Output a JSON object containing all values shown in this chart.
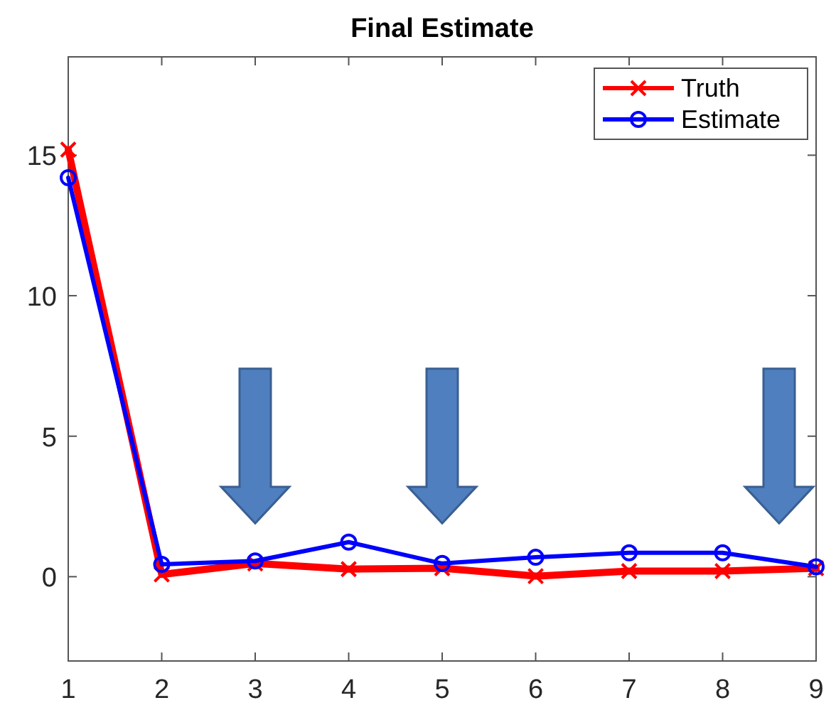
{
  "chart_data": {
    "type": "line",
    "title": "Final Estimate",
    "x": [
      1,
      2,
      3,
      4,
      5,
      6,
      7,
      8,
      9
    ],
    "series": [
      {
        "name": "Truth",
        "color": "#ff0000",
        "marker": "cross",
        "values": [
          15.2,
          0.08,
          0.47,
          0.27,
          0.3,
          0.02,
          0.2,
          0.2,
          0.3
        ]
      },
      {
        "name": "Estimate",
        "color": "#0000ff",
        "marker": "circle",
        "values": [
          14.2,
          0.44,
          0.56,
          1.23,
          0.47,
          0.69,
          0.85,
          0.85,
          0.35
        ]
      }
    ],
    "xlim": [
      1,
      9
    ],
    "xticks": [
      1,
      2,
      3,
      4,
      5,
      6,
      7,
      8,
      9
    ],
    "ylim": [
      -3,
      18.5
    ],
    "yticks": [
      0,
      5,
      10,
      15
    ],
    "grid": false,
    "legend": "top right",
    "line_style": "solid"
  }
}
